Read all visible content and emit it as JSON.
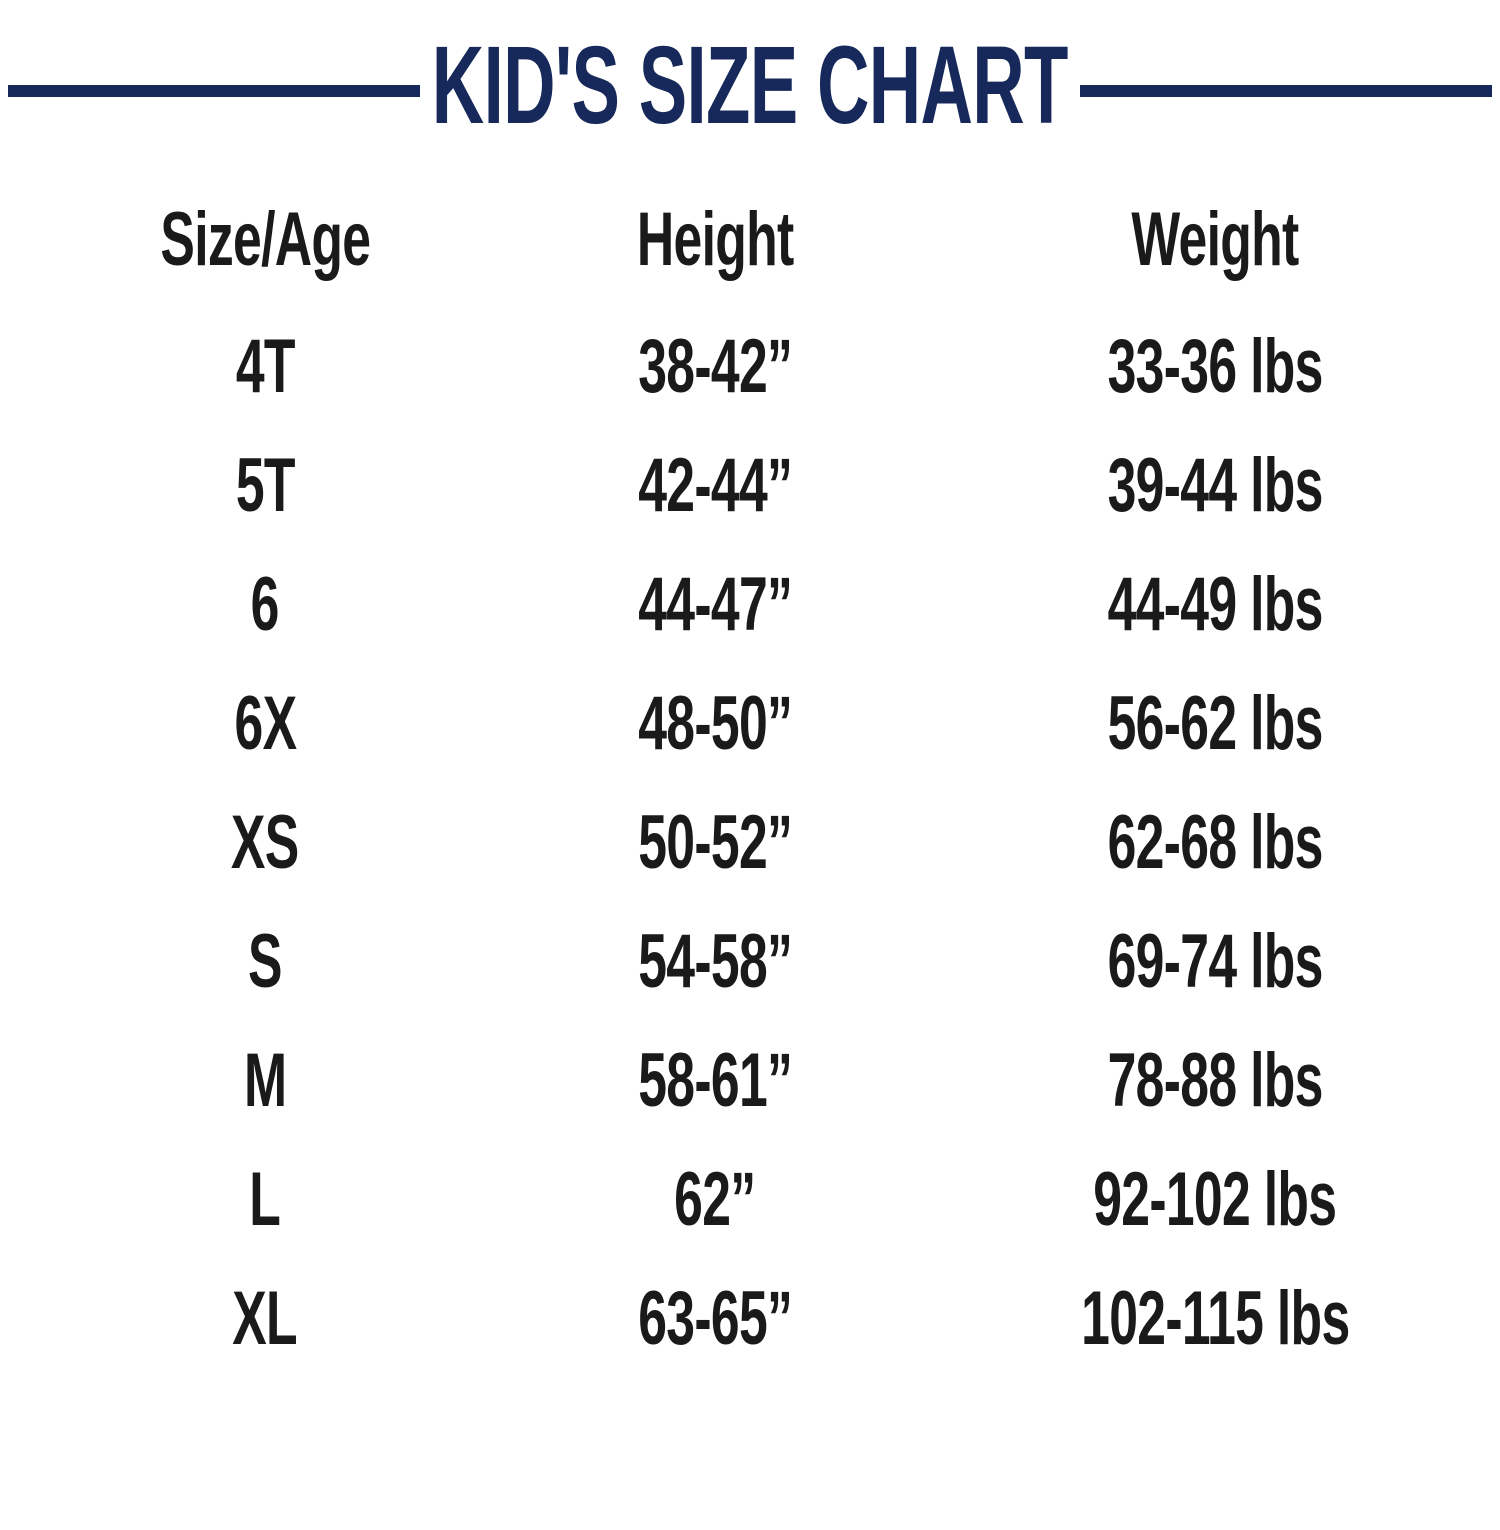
{
  "title": "KID'S SIZE CHART",
  "colors": {
    "accent_navy": "#17285A",
    "body_text": "#1A1A1A",
    "background": "#FFFFFF"
  },
  "chart_data": {
    "type": "table",
    "title": "KID'S SIZE CHART",
    "columns": [
      "Size/Age",
      "Height",
      "Weight"
    ],
    "rows": [
      [
        "4T",
        "38-42”",
        "33-36 lbs"
      ],
      [
        "5T",
        "42-44”",
        "39-44 lbs"
      ],
      [
        "6",
        "44-47”",
        "44-49 lbs"
      ],
      [
        "6X",
        "48-50”",
        "56-62 lbs"
      ],
      [
        "XS",
        "50-52”",
        "62-68 lbs"
      ],
      [
        "S",
        "54-58”",
        "69-74 lbs"
      ],
      [
        "M",
        "58-61”",
        "78-88 lbs"
      ],
      [
        "L",
        "62”",
        "92-102 lbs"
      ],
      [
        "XL",
        "63-65”",
        "102-115 lbs"
      ]
    ]
  }
}
